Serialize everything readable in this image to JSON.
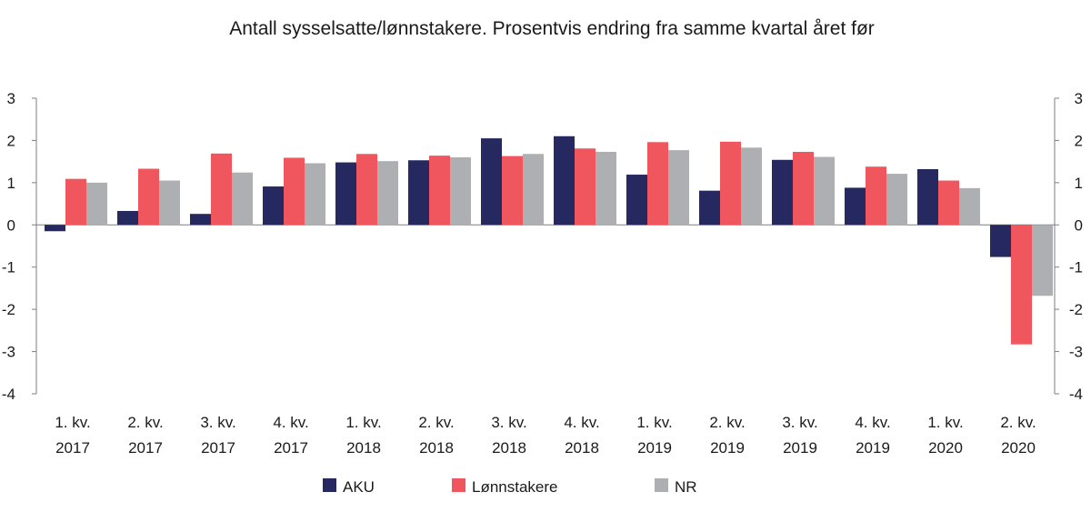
{
  "chart_data": {
    "type": "bar",
    "title": "Antall sysselsatte/lønnstakere. Prosentvis endring fra samme kvartal året før",
    "xlabel": "",
    "ylabel": "",
    "ylim": [
      -4,
      3
    ],
    "yticks": [
      3,
      2,
      1,
      0,
      -1,
      -2,
      -3,
      -4
    ],
    "categories": [
      [
        "1. kv.",
        "2017"
      ],
      [
        "2. kv.",
        "2017"
      ],
      [
        "3. kv.",
        "2017"
      ],
      [
        "4. kv.",
        "2017"
      ],
      [
        "1. kv.",
        "2018"
      ],
      [
        "2. kv.",
        "2018"
      ],
      [
        "3. kv.",
        "2018"
      ],
      [
        "4. kv.",
        "2018"
      ],
      [
        "1. kv.",
        "2019"
      ],
      [
        "2. kv.",
        "2019"
      ],
      [
        "3. kv.",
        "2019"
      ],
      [
        "4. kv.",
        "2019"
      ],
      [
        "1. kv.",
        "2020"
      ],
      [
        "2. kv.",
        "2020"
      ]
    ],
    "series": [
      {
        "name": "AKU",
        "color": "#262860",
        "values": [
          -0.15,
          0.33,
          0.26,
          0.91,
          1.48,
          1.53,
          2.05,
          2.1,
          1.19,
          0.81,
          1.54,
          0.88,
          1.32,
          -0.76
        ]
      },
      {
        "name": "Lønnstakere",
        "color": "#f0565e",
        "values": [
          1.09,
          1.33,
          1.69,
          1.59,
          1.68,
          1.64,
          1.63,
          1.81,
          1.96,
          1.97,
          1.73,
          1.38,
          1.05,
          -2.83
        ]
      },
      {
        "name": "NR",
        "color": "#aeafb2",
        "values": [
          1.0,
          1.05,
          1.24,
          1.46,
          1.51,
          1.6,
          1.68,
          1.73,
          1.77,
          1.83,
          1.61,
          1.21,
          0.87,
          -1.68
        ]
      }
    ],
    "legend": "bottom-center"
  }
}
